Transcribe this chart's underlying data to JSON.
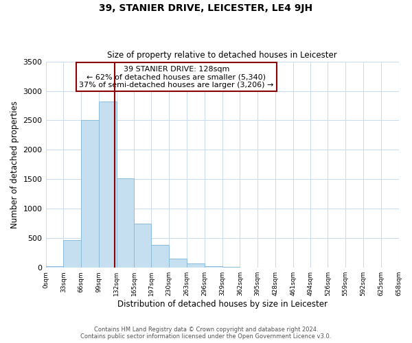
{
  "title": "39, STANIER DRIVE, LEICESTER, LE4 9JH",
  "subtitle": "Size of property relative to detached houses in Leicester",
  "xlabel": "Distribution of detached houses by size in Leicester",
  "ylabel": "Number of detached properties",
  "bin_edges": [
    0,
    33,
    66,
    99,
    132,
    165,
    197,
    230,
    263,
    296,
    329,
    362,
    395,
    428,
    461,
    494,
    526,
    559,
    592,
    625,
    658
  ],
  "bin_labels": [
    "0sqm",
    "33sqm",
    "66sqm",
    "99sqm",
    "132sqm",
    "165sqm",
    "197sqm",
    "230sqm",
    "263sqm",
    "296sqm",
    "329sqm",
    "362sqm",
    "395sqm",
    "428sqm",
    "461sqm",
    "494sqm",
    "526sqm",
    "559sqm",
    "592sqm",
    "625sqm",
    "658sqm"
  ],
  "counts": [
    30,
    470,
    2500,
    2820,
    1520,
    750,
    390,
    155,
    75,
    30,
    10,
    5,
    2,
    0,
    0,
    0,
    0,
    0,
    0,
    0
  ],
  "bar_color": "#c6dff0",
  "bar_edgecolor": "#8bbcda",
  "vline_x": 128,
  "vline_color": "#8b0000",
  "annotation_title": "39 STANIER DRIVE: 128sqm",
  "annotation_line1": "← 62% of detached houses are smaller (5,340)",
  "annotation_line2": "37% of semi-detached houses are larger (3,206) →",
  "annotation_box_edgecolor": "#8b0000",
  "ylim": [
    0,
    3500
  ],
  "yticks": [
    0,
    500,
    1000,
    1500,
    2000,
    2500,
    3000,
    3500
  ],
  "footnote1": "Contains HM Land Registry data © Crown copyright and database right 2024.",
  "footnote2": "Contains public sector information licensed under the Open Government Licence v3.0.",
  "background_color": "#ffffff",
  "grid_color": "#cddcec"
}
